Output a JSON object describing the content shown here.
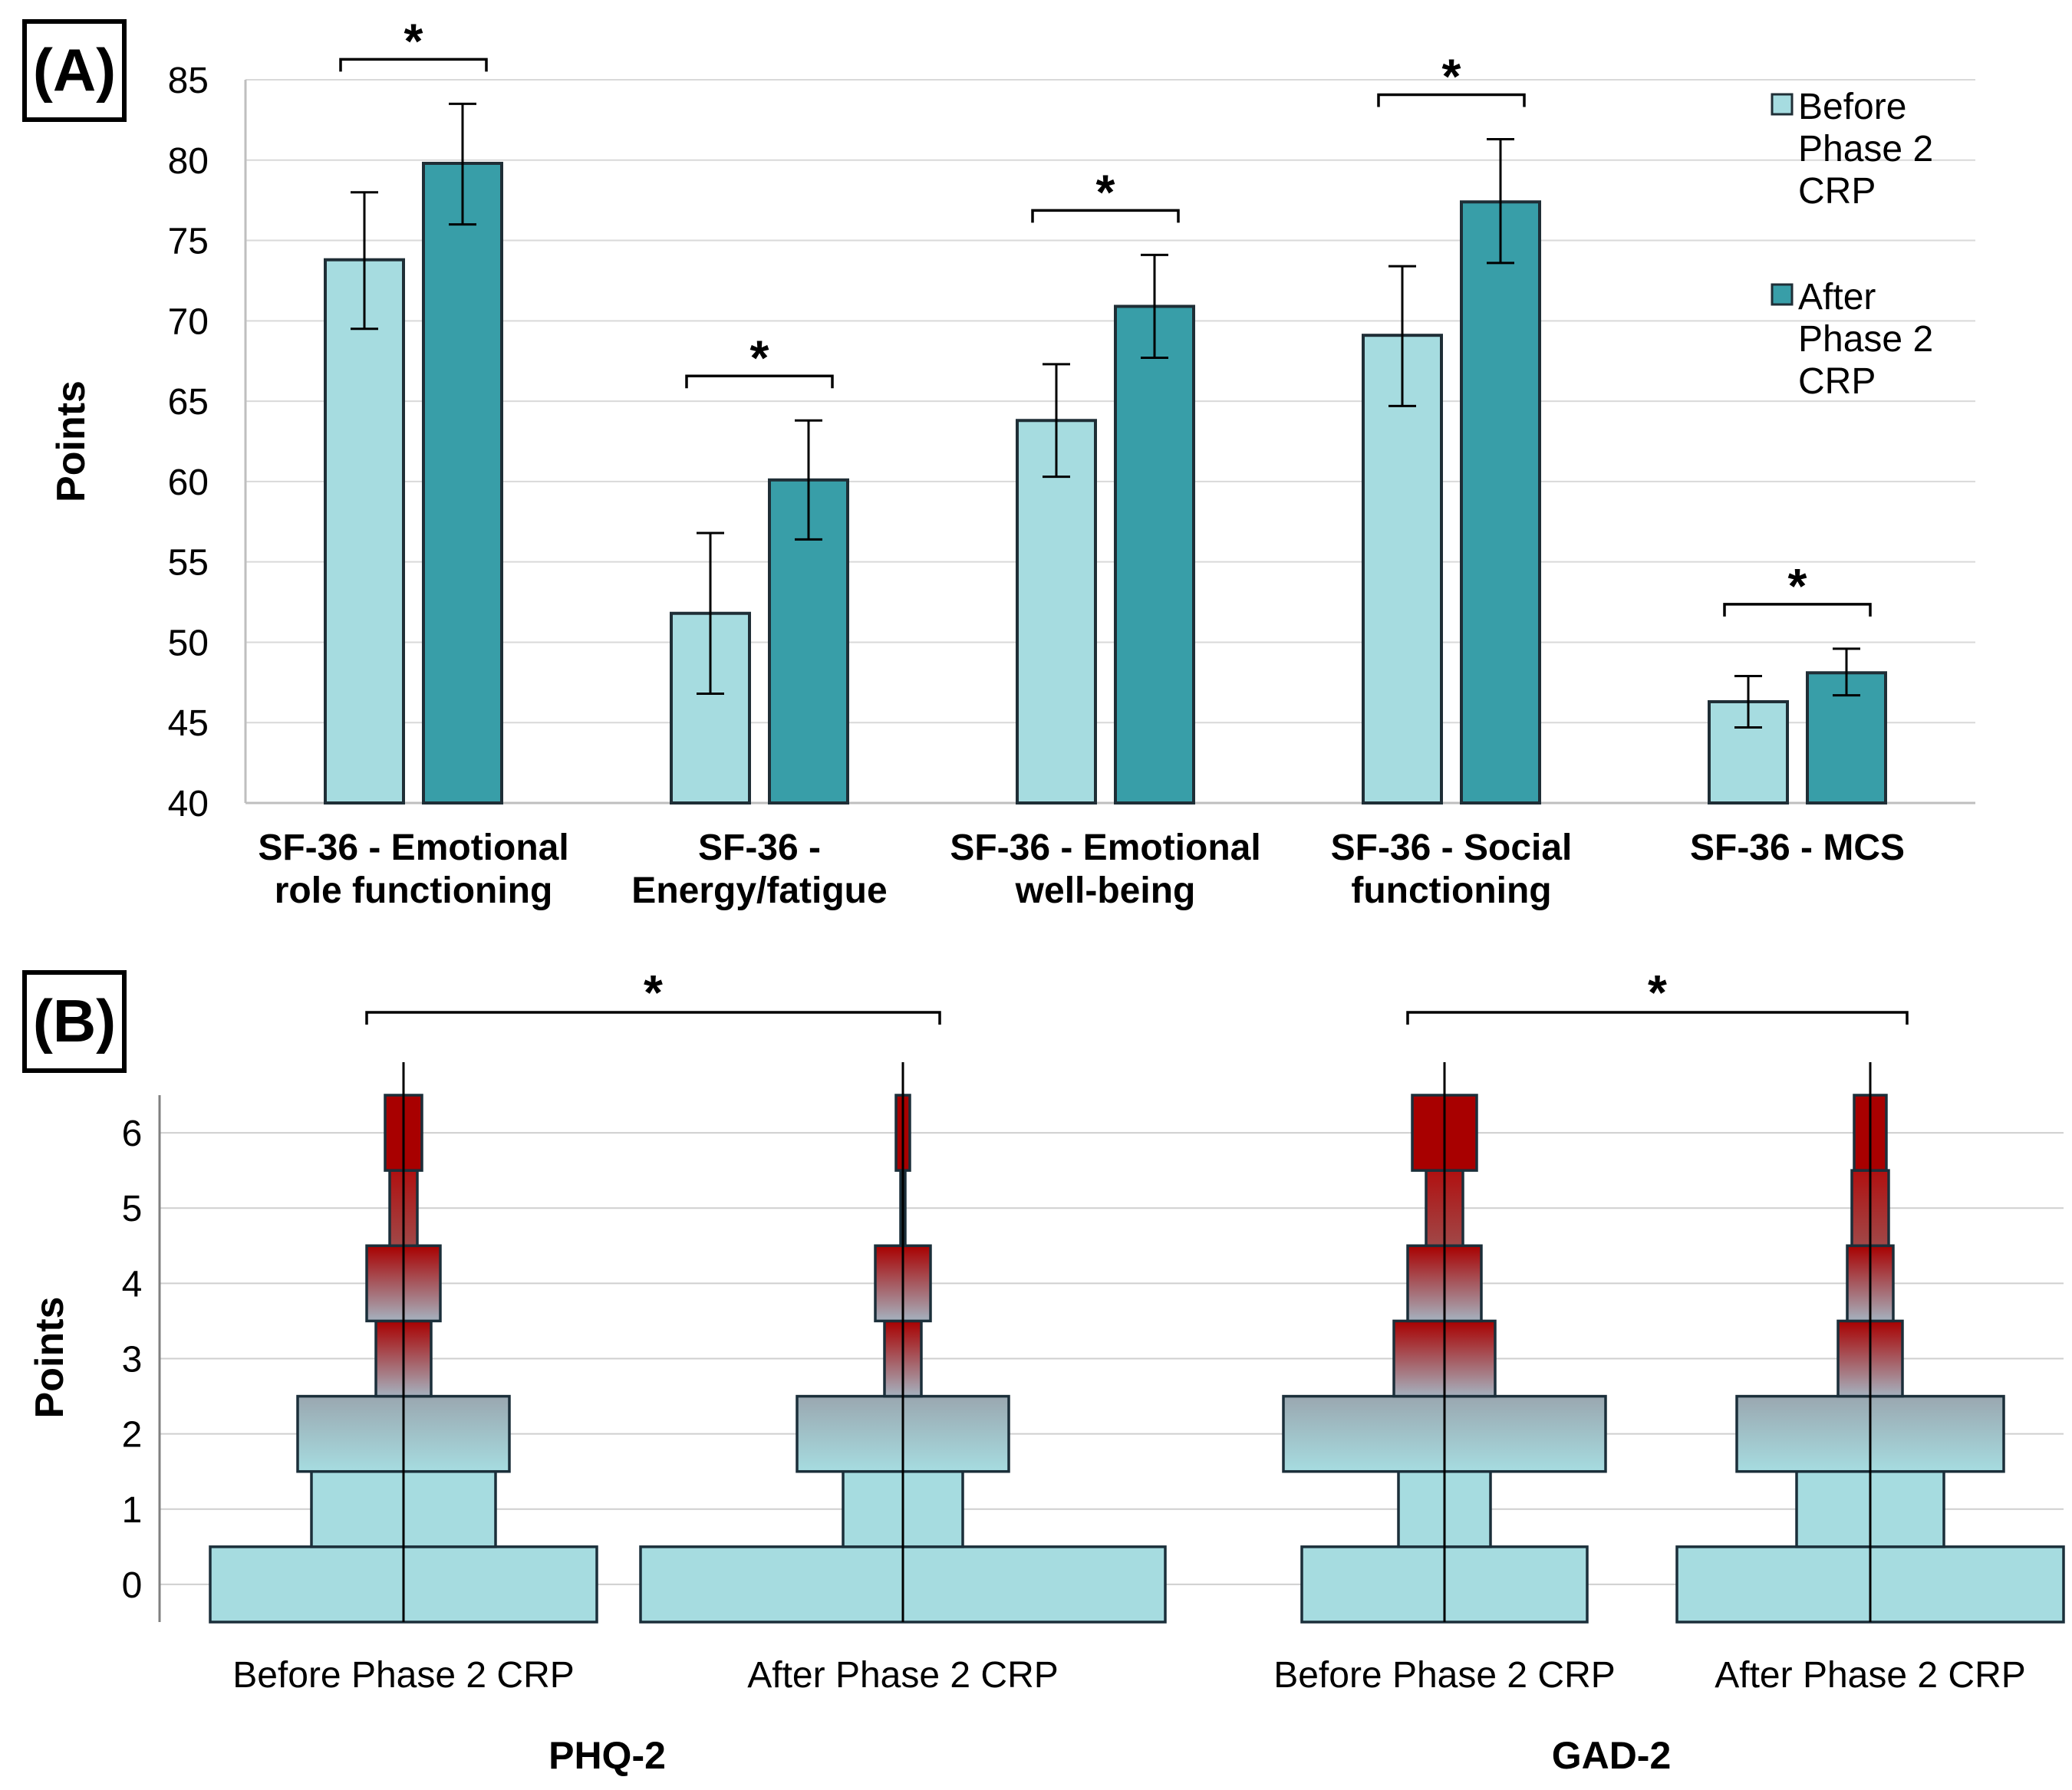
{
  "chart_data": [
    {
      "type": "bar",
      "panel": "(A)",
      "ylabel": "Points",
      "ylim": [
        40,
        85
      ],
      "yticks": [
        "40",
        "45",
        "50",
        "55",
        "60",
        "65",
        "70",
        "75",
        "80",
        "85"
      ],
      "grid": true,
      "legend_position": "right",
      "categories": [
        [
          "SF-36 - Emotional",
          "role functioning"
        ],
        [
          "SF-36 -",
          "Energy/fatigue"
        ],
        [
          "SF-36 - Emotional",
          "well-being"
        ],
        [
          "SF-36 - Social",
          "functioning"
        ],
        [
          "SF-36 - MCS"
        ]
      ],
      "series": [
        {
          "name": "Before Phase 2 CRP",
          "legend_lines": [
            "Before",
            "Phase 2",
            "CRP"
          ],
          "color": "#a6dce0",
          "values": [
            73.8,
            51.8,
            63.8,
            69.1,
            46.3
          ],
          "error_low": [
            69.5,
            46.8,
            60.3,
            64.7,
            44.7
          ],
          "error_high": [
            78.0,
            56.8,
            67.3,
            73.4,
            47.9
          ]
        },
        {
          "name": "After Phase 2 CRP",
          "legend_lines": [
            "After",
            "Phase 2",
            "CRP"
          ],
          "color": "#389ea8",
          "values": [
            79.8,
            60.1,
            70.9,
            77.4,
            48.1
          ],
          "error_low": [
            76.0,
            56.4,
            67.7,
            73.6,
            46.7
          ],
          "error_high": [
            83.5,
            63.8,
            74.1,
            81.3,
            49.6
          ]
        }
      ],
      "significance_marker": "*",
      "significant": [
        true,
        true,
        true,
        true,
        true
      ]
    },
    {
      "type": "histogram",
      "panel": "(B)",
      "ylabel": "Points",
      "yticks": [
        "0",
        "1",
        "2",
        "3",
        "4",
        "5",
        "6"
      ],
      "ylim": [
        -0.5,
        6.5
      ],
      "grid": true,
      "note": "mirrored frequency distribution per score level; values = relative frequency at each score 0..6",
      "groups": [
        {
          "name": "PHQ-2",
          "significance_marker": "*",
          "conditions": [
            {
              "label": "Before Phase 2 CRP",
              "frequencies": [
                0.42,
                0.2,
                0.23,
                0.06,
                0.08,
                0.03,
                0.04
              ]
            },
            {
              "label": "After Phase 2 CRP",
              "frequencies": [
                0.57,
                0.13,
                0.23,
                0.04,
                0.06,
                0.005,
                0.015
              ]
            }
          ]
        },
        {
          "name": "GAD-2",
          "significance_marker": "*",
          "conditions": [
            {
              "label": "Before Phase 2 CRP",
              "frequencies": [
                0.31,
                0.1,
                0.35,
                0.11,
                0.08,
                0.04,
                0.07
              ]
            },
            {
              "label": "After Phase 2 CRP",
              "frequencies": [
                0.42,
                0.16,
                0.29,
                0.07,
                0.05,
                0.04,
                0.035
              ]
            }
          ]
        }
      ],
      "colors": {
        "low": "#a6dce0",
        "high": "#a80000",
        "edge": "#1b2f3a"
      }
    }
  ]
}
